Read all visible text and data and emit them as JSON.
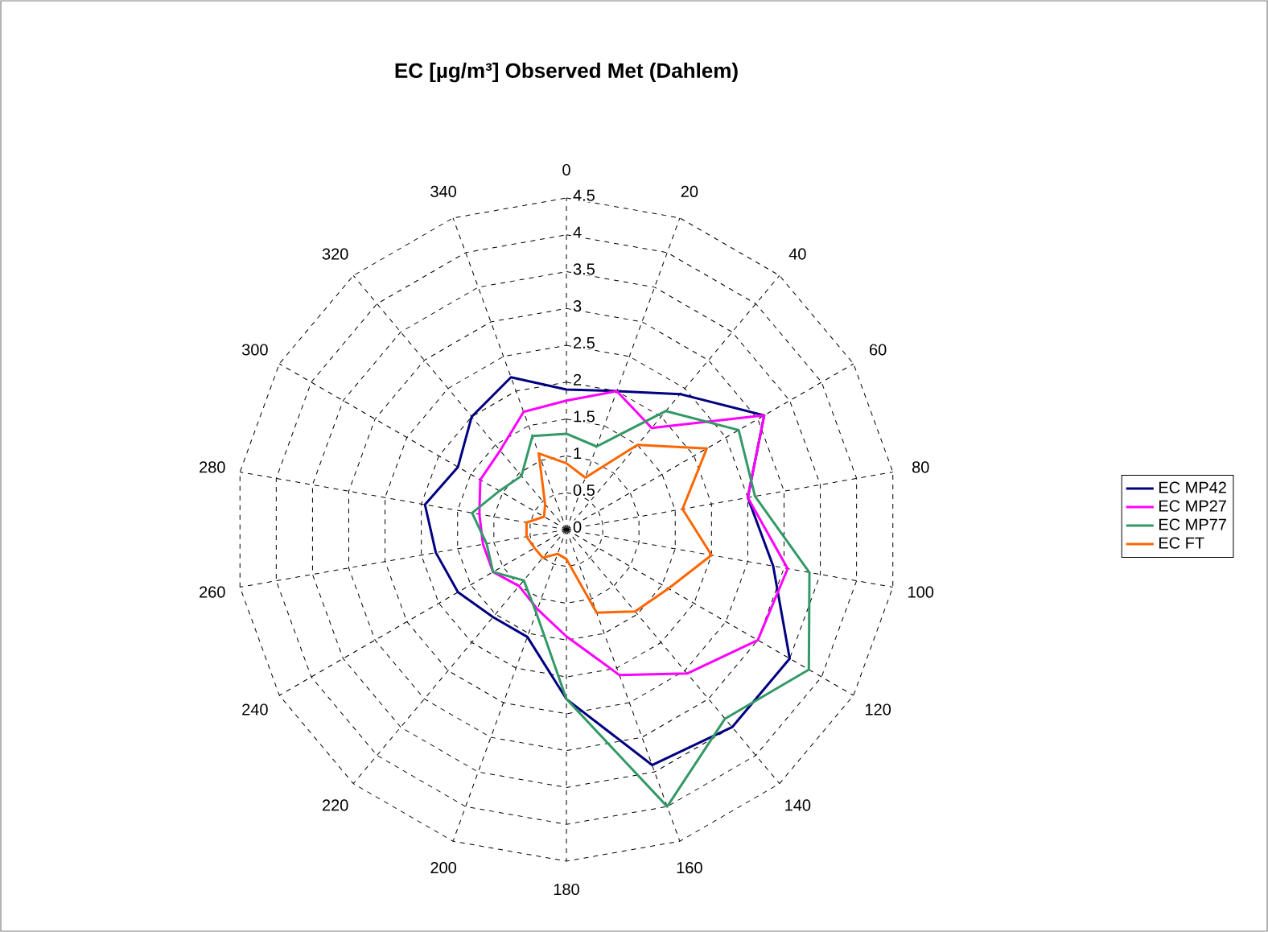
{
  "chart_data": {
    "type": "radar",
    "title": "EC [µg/m³] Observed Met (Dahlem)",
    "categories": [
      "0",
      "20",
      "40",
      "60",
      "80",
      "100",
      "120",
      "140",
      "160",
      "180",
      "200",
      "220",
      "240",
      "260",
      "280",
      "300",
      "320",
      "340"
    ],
    "ylim": [
      0,
      4.5
    ],
    "yticks": [
      0,
      0.5,
      1,
      1.5,
      2,
      2.5,
      3,
      3.5,
      4,
      4.5
    ],
    "grid": true,
    "legend": "right",
    "series": [
      {
        "name": "EC MP42",
        "color": "#000080",
        "values": [
          1.9,
          2.0,
          2.4,
          3.1,
          2.5,
          2.85,
          3.5,
          3.5,
          3.4,
          2.3,
          1.55,
          1.55,
          1.7,
          1.8,
          1.95,
          1.7,
          2.0,
          2.2
        ]
      },
      {
        "name": "EC MP27",
        "color": "#ff00ff",
        "values": [
          1.75,
          2.0,
          1.8,
          3.1,
          2.5,
          3.05,
          3.0,
          2.55,
          2.1,
          1.45,
          1.15,
          1.0,
          1.15,
          1.15,
          1.2,
          1.35,
          1.4,
          1.7
        ]
      },
      {
        "name": "EC MP77",
        "color": "#339966",
        "values": [
          1.3,
          1.2,
          2.1,
          2.7,
          2.6,
          3.35,
          3.8,
          3.35,
          4.0,
          2.3,
          1.2,
          0.9,
          1.15,
          1.1,
          1.3,
          1.05,
          0.95,
          1.35
        ]
      },
      {
        "name": "EC FT",
        "color": "#ff6600",
        "values": [
          0.9,
          0.75,
          1.5,
          2.2,
          1.6,
          2.0,
          1.6,
          1.45,
          1.2,
          0.4,
          0.35,
          0.5,
          0.5,
          0.55,
          0.55,
          0.35,
          0.45,
          1.1
        ]
      }
    ]
  }
}
